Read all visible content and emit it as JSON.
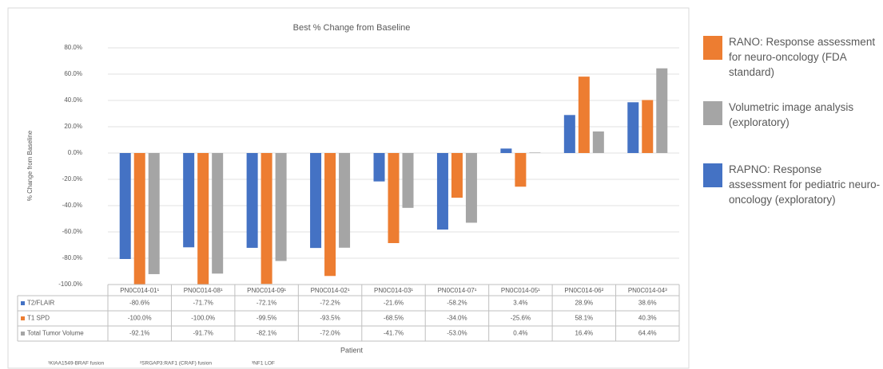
{
  "chart_data": {
    "type": "bar",
    "title": "Best % Change from Baseline",
    "y_label": "% Change from Baseline",
    "x_label": "Patient",
    "categories": [
      "PN0C014-01¹",
      "PN0C014-08¹",
      "PN0C014-09¹",
      "PN0C014-02¹",
      "PN0C014-03¹",
      "PN0C014-07¹",
      "PN0C014-05¹",
      "PN0C014-06²",
      "PN0C014-04³"
    ],
    "series": [
      {
        "name": "T2/FLAIR",
        "color": "#4472c4",
        "values": [
          -80.6,
          -71.7,
          -72.1,
          -72.2,
          -21.6,
          -58.2,
          3.4,
          28.9,
          38.6
        ],
        "value_labels": [
          "-80.6%",
          "-71.7%",
          "-72.1%",
          "-72.2%",
          "-21.6%",
          "-58.2%",
          "3.4%",
          "28.9%",
          "38.6%"
        ]
      },
      {
        "name": "T1 SPD",
        "color": "#ed7d31",
        "values": [
          -100.0,
          -100.0,
          -99.5,
          -93.5,
          -68.5,
          -34.0,
          -25.6,
          58.1,
          40.3
        ],
        "value_labels": [
          "-100.0%",
          "-100.0%",
          "-99.5%",
          "-93.5%",
          "-68.5%",
          "-34.0%",
          "-25.6%",
          "58.1%",
          "40.3%"
        ]
      },
      {
        "name": "Total Tumor Volume",
        "color": "#a5a5a5",
        "values": [
          -92.1,
          -91.7,
          -82.1,
          -72.0,
          -41.7,
          -53.0,
          0.4,
          16.4,
          64.4
        ],
        "value_labels": [
          "-92.1%",
          "-91.7%",
          "-82.1%",
          "-72.0%",
          "-41.7%",
          "-53.0%",
          "0.4%",
          "16.4%",
          "64.4%"
        ]
      }
    ],
    "ylim": [
      -100,
      80
    ],
    "yticks": [
      {
        "value": -100,
        "label": "-100.0%"
      },
      {
        "value": -80,
        "label": "-80.0%"
      },
      {
        "value": -60,
        "label": "-60.0%"
      },
      {
        "value": -40,
        "label": "-40.0%"
      },
      {
        "value": -20,
        "label": "-20.0%"
      },
      {
        "value": 0,
        "label": "0.0%"
      },
      {
        "value": 20,
        "label": "20.0%"
      },
      {
        "value": 40,
        "label": "40.0%"
      },
      {
        "value": 60,
        "label": "60.0%"
      },
      {
        "value": 80,
        "label": "80.0%"
      }
    ],
    "grid": true,
    "footnotes": [
      "¹KIAA1549-BRAF fusion",
      "²SRGAP3:RAF1 (CRAF) fusion",
      "³NF1 LOF"
    ],
    "side_legend": [
      {
        "color": "#ed7d31",
        "label": "RANO: Response assessment for neuro-oncology (FDA standard)"
      },
      {
        "color": "#a5a5a5",
        "label": "Volumetric image analysis (exploratory)"
      },
      {
        "color": "#4472c4",
        "label": "RAPNO: Response assessment for pediatric neuro-oncology (exploratory)"
      }
    ]
  }
}
